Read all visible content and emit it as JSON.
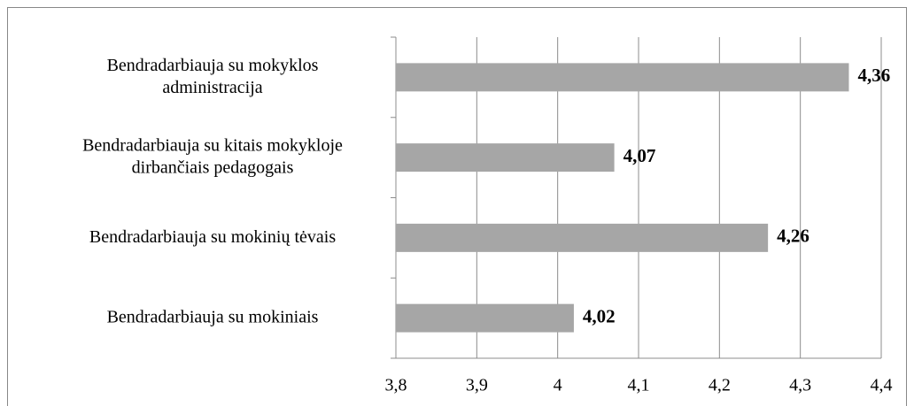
{
  "chart_data": {
    "type": "bar",
    "orientation": "horizontal",
    "categories": [
      "Bendradarbiauja su mokyklos\nadministracija",
      "Bendradarbiauja su kitais mokykloje\ndirbančiais pedagogais",
      "Bendradarbiauja su mokinių tėvais",
      "Bendradarbiauja su mokiniais"
    ],
    "values": [
      4.36,
      4.07,
      4.26,
      4.02
    ],
    "value_labels": [
      "4,36",
      "4,07",
      "4,26",
      "4,02"
    ],
    "color": "#a6a6a6",
    "xlim": [
      3.8,
      4.4
    ],
    "xticks": [
      {
        "value": 3.8,
        "label": "3,8"
      },
      {
        "value": 3.9,
        "label": "3,9"
      },
      4,
      {
        "value": 4.1,
        "label": "4,1"
      },
      {
        "value": 4.2,
        "label": "4,2"
      },
      {
        "value": 4.3,
        "label": "4,3"
      },
      {
        "value": 4.4,
        "label": "4,4"
      }
    ],
    "grid": true
  }
}
